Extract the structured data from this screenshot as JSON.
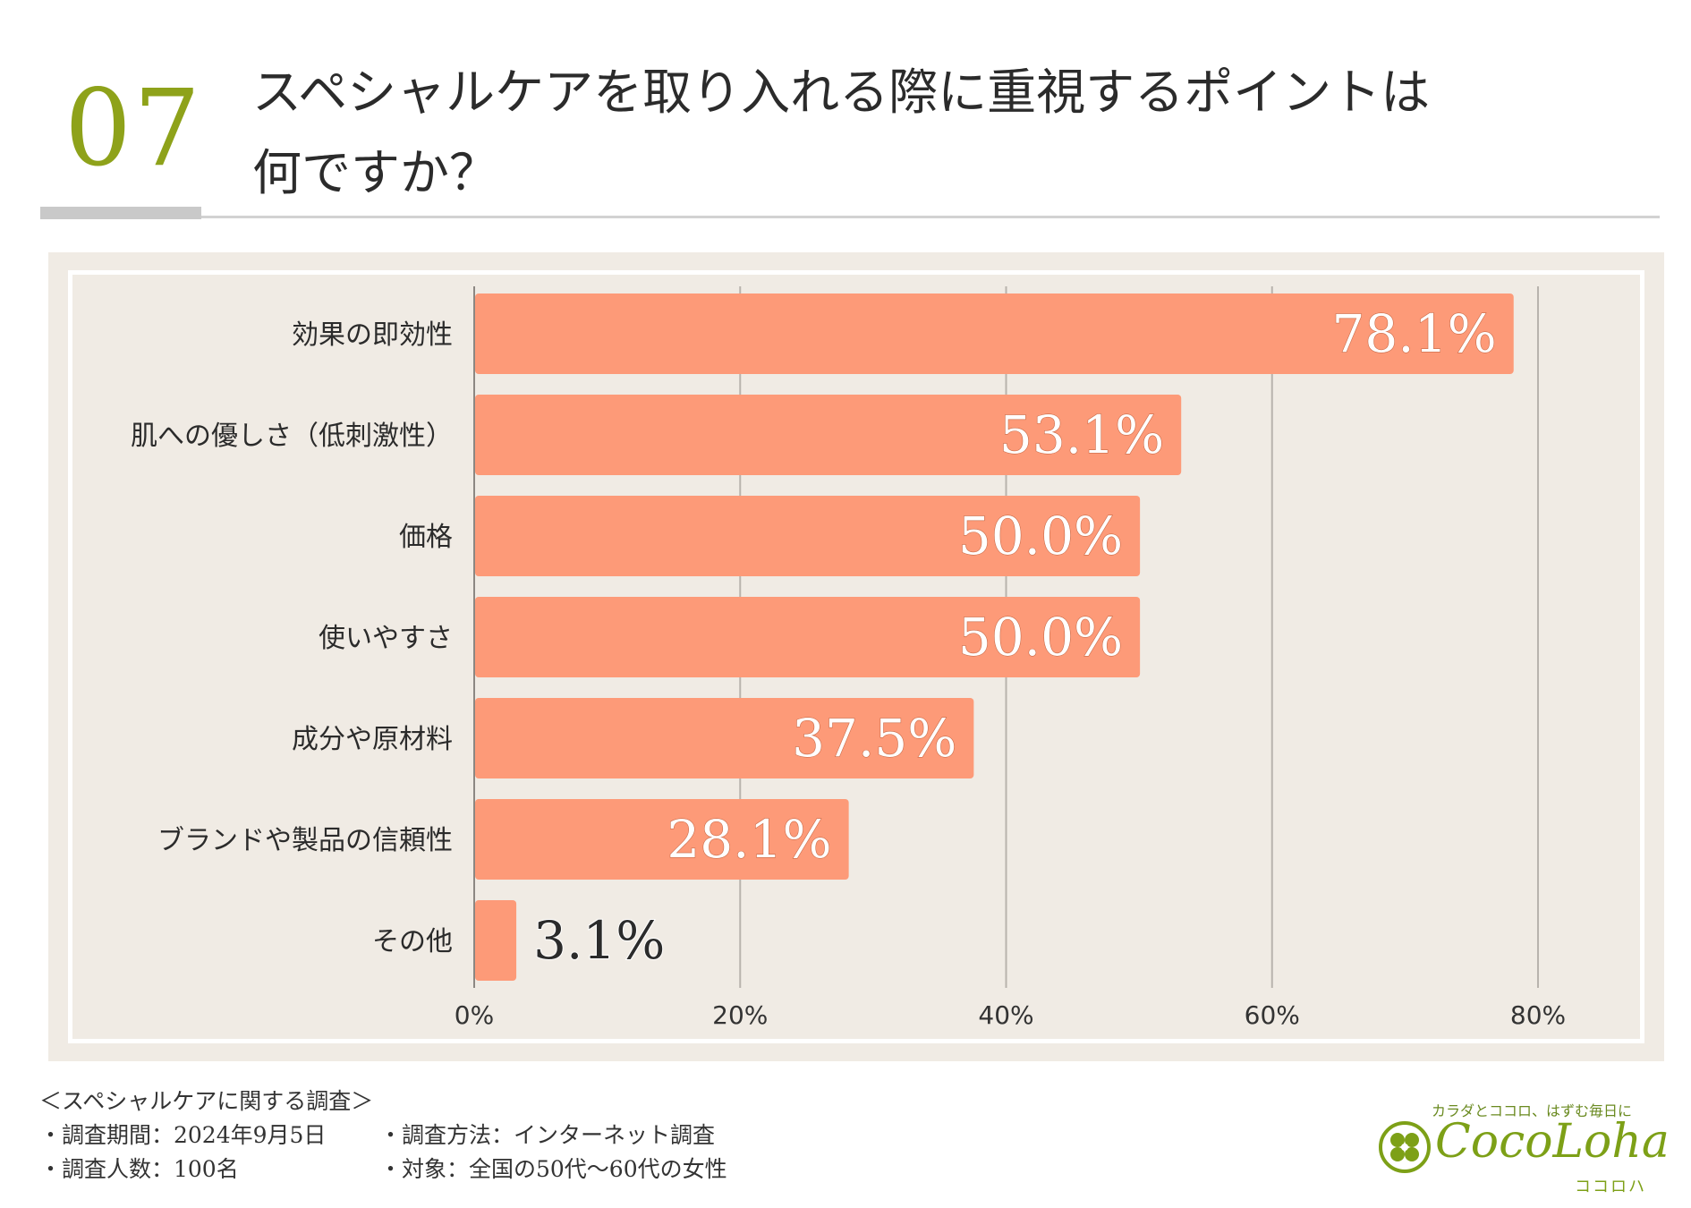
{
  "header": {
    "number": "07",
    "title_line1": "スペシャルケアを取り入れる際に重視するポイントは",
    "title_line2": "何ですか？"
  },
  "colors": {
    "accent_green": "#8ea21a",
    "bar": "#fd9a78",
    "panel": "#f0ebe4",
    "grid": "#b8b3ad"
  },
  "chart_data": {
    "type": "bar",
    "orientation": "horizontal",
    "categories": [
      "効果の即効性",
      "肌への優しさ（低刺激性）",
      "価格",
      "使いやすさ",
      "成分や原材料",
      "ブランドや製品の信頼性",
      "その他"
    ],
    "values": [
      78.1,
      53.1,
      50.0,
      50.0,
      37.5,
      28.1,
      3.1
    ],
    "value_labels": [
      "78.1%",
      "53.1%",
      "50.0%",
      "50.0%",
      "37.5%",
      "28.1%",
      "3.1%"
    ],
    "xlim": [
      0,
      80
    ],
    "xticks": [
      0,
      20,
      40,
      60,
      80
    ],
    "xtick_labels": [
      "0%",
      "20%",
      "40%",
      "60%",
      "80%"
    ],
    "grid": true,
    "title": "",
    "xlabel": "",
    "ylabel": ""
  },
  "footer": {
    "survey_title": "＜スペシャルケアに関する調査＞",
    "period": "・調査期間：2024年9月5日",
    "method": "・調査方法：インターネット調査",
    "respondents": "・調査人数：100名",
    "target": "・対象：全国の50代〜60代の女性"
  },
  "logo": {
    "tagline": "カラダとココロ、はずむ毎日に",
    "name": "CocoLoha",
    "kana": "ココロハ",
    "icon": "clover-icon"
  }
}
